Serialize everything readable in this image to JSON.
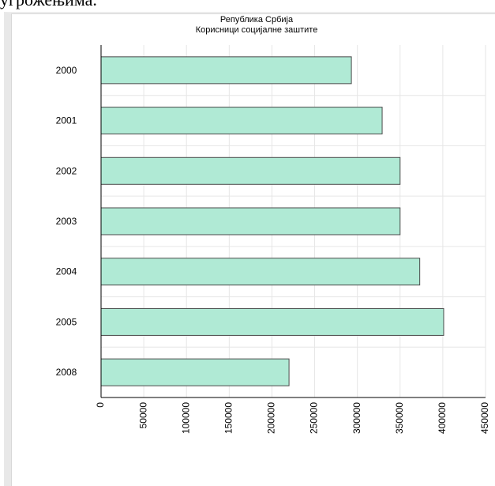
{
  "header_fragment": "угрожењима.",
  "chart_data": {
    "type": "bar",
    "orientation": "horizontal",
    "title": "Република Србија",
    "subtitle": "Корисници социјалне заштите",
    "categories": [
      "2000",
      "2001",
      "2002",
      "2003",
      "2004",
      "2005",
      "2008"
    ],
    "values": [
      293000,
      329000,
      350000,
      350000,
      373000,
      401000,
      220000
    ],
    "xlim": [
      0,
      450000
    ],
    "xticks": [
      "0",
      "50000",
      "100000",
      "150000",
      "200000",
      "250000",
      "300000",
      "350000",
      "400000",
      "450000"
    ],
    "xlabel": "",
    "ylabel": "",
    "grid": true,
    "colors": {
      "bar_fill": "#b0ead5",
      "bar_stroke": "#4a4a4a",
      "grid": "#e6e6e6",
      "axis": "#000000"
    }
  }
}
